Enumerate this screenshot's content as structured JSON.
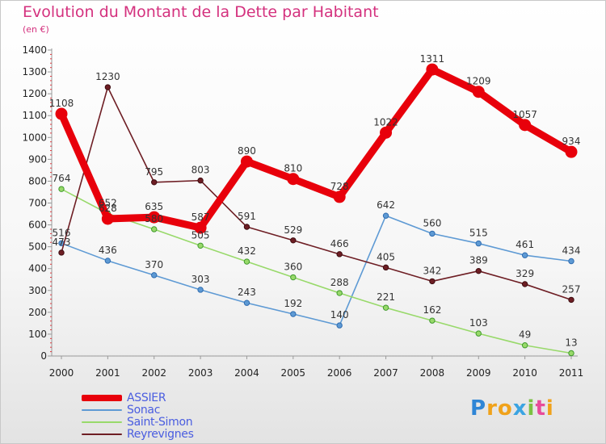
{
  "title": "Evolution du Montant de la Dette par Habitant",
  "subtitle": "(en €)",
  "logo_text": "Proxiti",
  "chart_data": {
    "type": "line",
    "title": "Evolution du Montant de la Dette par Habitant",
    "subtitle": "(en €)",
    "x": [
      "2000",
      "2001",
      "2002",
      "2003",
      "2004",
      "2005",
      "2006",
      "2007",
      "2008",
      "2009",
      "2010",
      "2011"
    ],
    "ylim": [
      0,
      1400
    ],
    "yticks": [
      "0",
      "100",
      "200",
      "300",
      "400",
      "500",
      "600",
      "700",
      "800",
      "900",
      "1000",
      "1100",
      "1200",
      "1300",
      "1400"
    ],
    "grid": false,
    "legend_position": "bottom-left",
    "series": [
      {
        "name": "ASSIER",
        "color": "#e8000b",
        "values": [
          1108,
          628,
          635,
          587,
          890,
          810,
          728,
          1022,
          1311,
          1209,
          1057,
          934
        ]
      },
      {
        "name": "Sonac",
        "color": "#5e9ad4",
        "values": [
          516,
          436,
          370,
          303,
          243,
          192,
          140,
          642,
          560,
          515,
          461,
          434
        ]
      },
      {
        "name": "Saint-Simon",
        "color": "#98d96a",
        "values": [
          764,
          652,
          580,
          505,
          432,
          360,
          288,
          221,
          162,
          103,
          49,
          13
        ]
      },
      {
        "name": "Reyrevignes",
        "color": "#6e1e24",
        "values": [
          473,
          1230,
          795,
          803,
          591,
          529,
          466,
          405,
          342,
          389,
          329,
          257
        ]
      }
    ]
  }
}
